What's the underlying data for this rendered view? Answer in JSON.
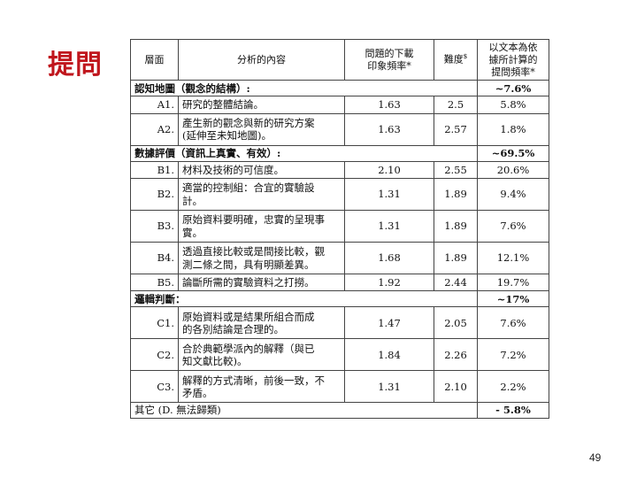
{
  "slide": {
    "title": "提問",
    "page_number": "49"
  },
  "table": {
    "headers": {
      "level": "層面",
      "content": "分析的內容",
      "ug_pct": "問題的下載\n印象頻率*",
      "difficulty": "難度$",
      "text_pct": "以文本為依\n據所計算的\n提問頻率*"
    },
    "sections": [
      {
        "title": "認知地圖（觀念的結構）:",
        "pct": "~7.6%",
        "rows": [
          {
            "code": "A1.",
            "content": "研究的整體結論。",
            "ug": "1.63",
            "diff": "2.5",
            "text": "5.8%"
          },
          {
            "code": "A2.",
            "content": "產生新的觀念與新的研究方案\n(延伸至未知地圖)。",
            "ug": "1.63",
            "diff": "2.57",
            "text": "1.8%"
          }
        ]
      },
      {
        "title": "數據評價（資訊上真實、有效）:",
        "pct": "~69.5%",
        "rows": [
          {
            "code": "B1.",
            "content": "材料及技術的可信度。",
            "ug": "2.10",
            "diff": "2.55",
            "text": "20.6%"
          },
          {
            "code": "B2.",
            "content": "適當的控制組：合宜的實驗設\n計。",
            "ug": "1.31",
            "diff": "1.89",
            "text": "9.4%"
          },
          {
            "code": "B3.",
            "content": "原始資料要明確，忠實的呈現事\n實。",
            "ug": "1.31",
            "diff": "1.89",
            "text": "7.6%"
          },
          {
            "code": "B4.",
            "content": "透過直接比較或是間接比較，觀\n測二條之間，具有明顯差異。",
            "ug": "1.68",
            "diff": "1.89",
            "text": "12.1%"
          },
          {
            "code": "B5.",
            "content": "論斷所需的實驗資料之打撈。",
            "ug": "1.92",
            "diff": "2.44",
            "text": "19.7%"
          }
        ]
      },
      {
        "title": "邏輯判斷：",
        "pct": "~17%",
        "rows": [
          {
            "code": "C1.",
            "content": "原始資料或是結果所組合而成\n的各別結論是合理的。",
            "ug": "1.47",
            "diff": "2.05",
            "text": "7.6%"
          },
          {
            "code": "C2.",
            "content": "合於典範學派內的解釋（與已\n知文獻比較)。",
            "ug": "1.84",
            "diff": "2.26",
            "text": "7.2%"
          },
          {
            "code": "C3.",
            "content": "解釋的方式清晰，前後一致，不\n矛盾。",
            "ug": "1.31",
            "diff": "2.10",
            "text": "2.2%"
          }
        ]
      }
    ],
    "footer": {
      "label": "其它 (D. 無法歸類)",
      "pct": "- 5.8%"
    }
  }
}
